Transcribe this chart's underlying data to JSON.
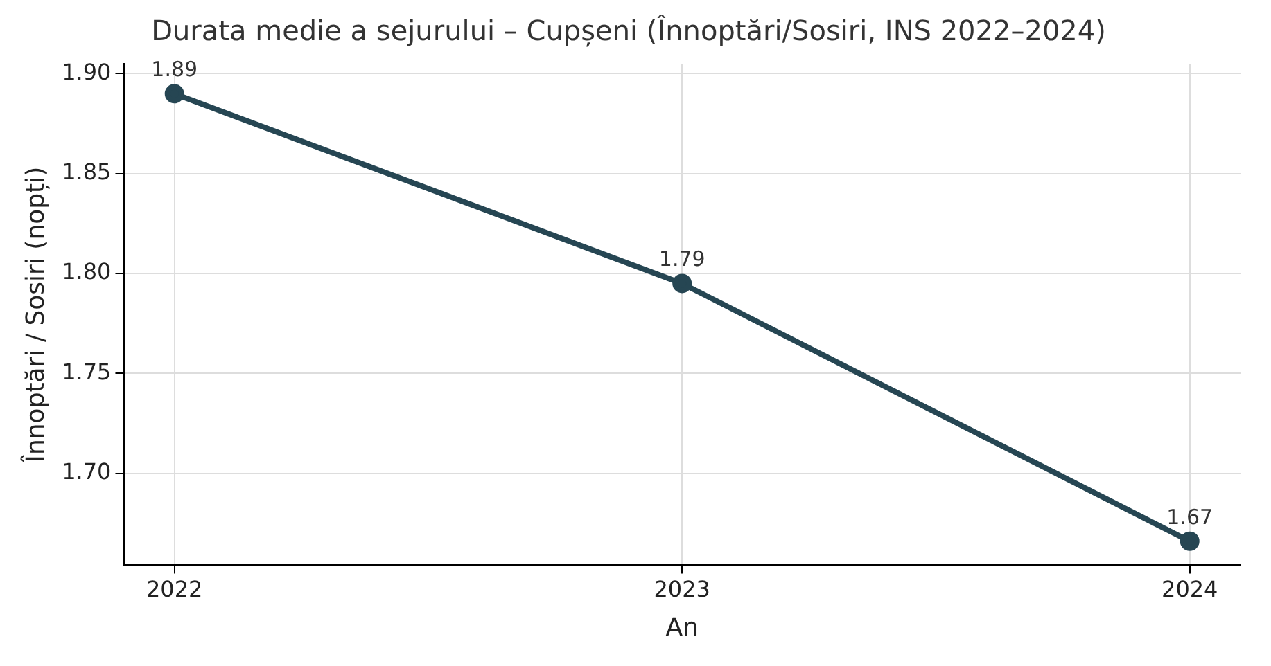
{
  "chart_data": {
    "type": "line",
    "title": "Durata medie a sejurului – Cupșeni (Înnoptări/Sosiri, INS 2022–2024)",
    "xlabel": "An",
    "ylabel": "Înnoptări / Sosiri (nopți)",
    "x": [
      2022,
      2023,
      2024
    ],
    "series": [
      {
        "color": "#264653",
        "values": [
          1.89,
          1.795,
          1.666
        ],
        "value_labels": [
          "1.89",
          "1.79",
          "1.67"
        ]
      }
    ],
    "xlim": [
      2021.9,
      2024.1
    ],
    "xticks": [
      2022,
      2023,
      2024
    ],
    "ylim": [
      1.654,
      1.905
    ],
    "yticks": [
      {
        "value": 1.7,
        "label": "1.70"
      },
      {
        "value": 1.75,
        "label": "1.75"
      },
      {
        "value": 1.8,
        "label": "1.80"
      },
      {
        "value": 1.85,
        "label": "1.85"
      },
      {
        "value": 1.9,
        "label": "1.90"
      }
    ],
    "grid": true,
    "marker": "circle",
    "line_style": "solid",
    "legend": false
  }
}
